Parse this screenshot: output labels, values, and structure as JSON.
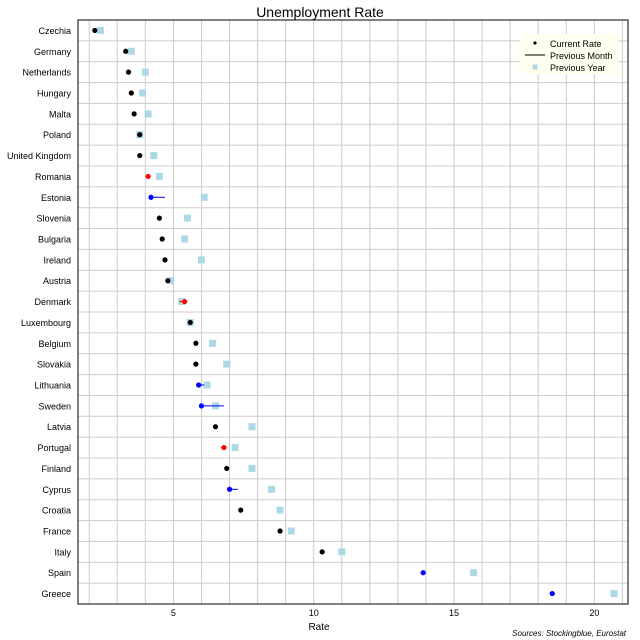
{
  "chart_data": {
    "type": "scatter",
    "title": "Unemployment Rate",
    "xlabel": "Rate",
    "ylabel": "",
    "xlim": [
      1.6,
      21.2
    ],
    "xticks": [
      5,
      10,
      15,
      20
    ],
    "grid": true,
    "legend_position": "top-right",
    "legend": [
      {
        "name": "Current Rate",
        "marker": "dot"
      },
      {
        "name": "Previous Month",
        "marker": "line"
      },
      {
        "name": "Previous Year",
        "marker": "square"
      }
    ],
    "colors": {
      "increase": "#ff0000",
      "decrease": "#0000ff",
      "unchanged": "#000000",
      "previous_year": "#add8e6",
      "grid": "#cccccc",
      "legend_bg": "#fffff0"
    },
    "source": "Sources: Stockingblue, Eurostat",
    "categories": [
      "Czechia",
      "Germany",
      "Netherlands",
      "Hungary",
      "Malta",
      "Poland",
      "United Kingdom",
      "Romania",
      "Estonia",
      "Slovenia",
      "Bulgaria",
      "Ireland",
      "Austria",
      "Denmark",
      "Luxembourg",
      "Belgium",
      "Slovakia",
      "Lithuania",
      "Sweden",
      "Latvia",
      "Portugal",
      "Finland",
      "Cyprus",
      "Croatia",
      "France",
      "Italy",
      "Spain",
      "Greece"
    ],
    "series": [
      {
        "name": "Current Rate",
        "values": [
          2.2,
          3.3,
          3.4,
          3.5,
          3.6,
          3.8,
          3.8,
          4.1,
          4.2,
          4.5,
          4.6,
          4.7,
          4.8,
          5.4,
          5.6,
          5.8,
          5.8,
          5.9,
          6.0,
          6.5,
          6.8,
          6.9,
          7.0,
          7.4,
          8.8,
          10.3,
          13.9,
          18.5
        ]
      },
      {
        "name": "Previous Month",
        "values": [
          2.2,
          3.3,
          3.4,
          3.5,
          3.6,
          3.8,
          3.8,
          4.0,
          4.7,
          4.5,
          4.6,
          4.7,
          4.8,
          5.2,
          5.6,
          5.8,
          5.8,
          6.1,
          6.8,
          6.5,
          6.7,
          6.9,
          7.3,
          7.4,
          8.8,
          10.3,
          14.0,
          18.6
        ]
      },
      {
        "name": "Previous Year",
        "values": [
          2.4,
          3.5,
          4.0,
          3.9,
          4.1,
          3.8,
          4.3,
          4.5,
          6.1,
          5.5,
          5.4,
          6.0,
          4.9,
          5.3,
          5.6,
          6.4,
          6.9,
          6.2,
          6.5,
          7.8,
          7.2,
          7.8,
          8.5,
          8.8,
          9.2,
          11.0,
          15.7,
          20.7
        ]
      }
    ]
  }
}
